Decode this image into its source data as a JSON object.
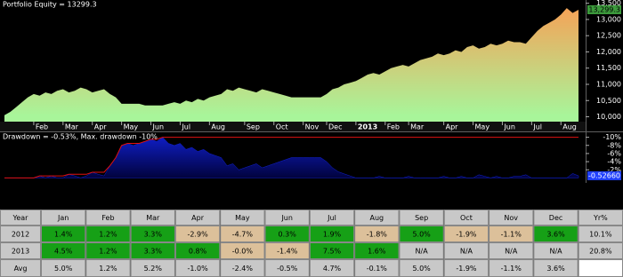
{
  "chart_data": [
    {
      "type": "area",
      "title": "Portfolio Equity = 13299.3",
      "values": [
        10050,
        10150,
        10300,
        10450,
        10600,
        10700,
        10650,
        10750,
        10700,
        10800,
        10850,
        10750,
        10800,
        10900,
        10850,
        10750,
        10800,
        10850,
        10700,
        10600,
        10400,
        10400,
        10400,
        10400,
        10350,
        10350,
        10350,
        10350,
        10400,
        10450,
        10400,
        10500,
        10450,
        10550,
        10500,
        10600,
        10650,
        10700,
        10850,
        10800,
        10900,
        10850,
        10800,
        10750,
        10850,
        10800,
        10750,
        10700,
        10650,
        10600,
        10600,
        10600,
        10600,
        10600,
        10600,
        10700,
        10850,
        10900,
        11000,
        11050,
        11100,
        11200,
        11300,
        11350,
        11300,
        11400,
        11500,
        11550,
        11600,
        11550,
        11650,
        11750,
        11800,
        11850,
        11950,
        11900,
        11950,
        12050,
        12000,
        12150,
        12200,
        12100,
        12150,
        12250,
        12200,
        12250,
        12350,
        12300,
        12300,
        12250,
        12450,
        12650,
        12800,
        12900,
        13000,
        13150,
        13350,
        13200,
        13299.3
      ],
      "xlim": [
        0,
        98
      ],
      "xticks": [
        {
          "value": 5,
          "label": "Feb"
        },
        {
          "value": 10,
          "label": "Mar"
        },
        {
          "value": 15,
          "label": "Apr"
        },
        {
          "value": 20,
          "label": "May"
        },
        {
          "value": 25,
          "label": "Jun"
        },
        {
          "value": 30,
          "label": "Jul"
        },
        {
          "value": 35,
          "label": "Aug"
        },
        {
          "value": 41,
          "label": "Sep"
        },
        {
          "value": 46,
          "label": "Oct"
        },
        {
          "value": 51,
          "label": "Nov"
        },
        {
          "value": 55,
          "label": "Dec"
        },
        {
          "value": 60,
          "label": "2013"
        },
        {
          "value": 65,
          "label": "Feb"
        },
        {
          "value": 69,
          "label": "Mar"
        },
        {
          "value": 75,
          "label": "Apr"
        },
        {
          "value": 80,
          "label": "May"
        },
        {
          "value": 85,
          "label": "Jun"
        },
        {
          "value": 90,
          "label": "Jul"
        },
        {
          "value": 95,
          "label": "Aug"
        }
      ],
      "ylim": [
        9850,
        13600
      ],
      "yticks": [
        {
          "value": 10000,
          "label": "10,000"
        },
        {
          "value": 10500,
          "label": "10,500"
        },
        {
          "value": 11000,
          "label": "11,000"
        },
        {
          "value": 11500,
          "label": "11,500"
        },
        {
          "value": 12000,
          "label": "12,000"
        },
        {
          "value": 12500,
          "label": "12,500"
        },
        {
          "value": 13000,
          "label": "13,000"
        },
        {
          "value": 13500,
          "label": "13,500"
        }
      ],
      "last_label": "13,299.3",
      "color_top": "#f2a65a",
      "color_bottom": "#a8f59a",
      "label_color": "#3c9a3c"
    },
    {
      "type": "drawdown",
      "title": "Drawdown = -0.53%, Max. drawdown -10%",
      "series": [
        {
          "color": "#1020d0",
          "values": [
            0,
            0,
            0,
            0,
            0,
            0,
            -0.5,
            0,
            -0.5,
            0,
            0,
            -0.9,
            -0.5,
            0,
            -0.5,
            -1.4,
            -0.9,
            -0.5,
            -3,
            -5,
            -8,
            -8.5,
            -8,
            -8.5,
            -9,
            -9.5,
            -9,
            -10,
            -8.5,
            -8,
            -8.5,
            -7,
            -7.5,
            -6.5,
            -7,
            -6,
            -5.5,
            -5,
            -3,
            -3.5,
            -2,
            -2.5,
            -3,
            -3.5,
            -2.5,
            -3,
            -3.5,
            -4,
            -4.5,
            -5,
            -5,
            -5,
            -5,
            -5,
            -5,
            -4,
            -2.5,
            -1.5,
            -1,
            -0.5,
            0,
            0,
            0,
            0,
            -0.4,
            0,
            0,
            0,
            0,
            -0.4,
            0,
            0,
            0,
            0,
            0,
            -0.4,
            0,
            0,
            -0.4,
            0,
            0,
            -0.8,
            -0.4,
            0,
            -0.4,
            0,
            0,
            -0.4,
            -0.4,
            -0.8,
            0,
            0,
            0,
            0,
            0,
            0,
            0,
            -1.1,
            -0.5266
          ]
        },
        {
          "color": "#e01010",
          "values": [
            0,
            0,
            0,
            0,
            0,
            0,
            -0.5,
            -0.5,
            -0.5,
            -0.5,
            -0.5,
            -0.9,
            -0.9,
            -0.9,
            -0.9,
            -1.4,
            -1.4,
            -1.4,
            -3,
            -5,
            -8,
            -8.5,
            -8.5,
            -8.5,
            -9,
            -9.5,
            -9.5,
            -10,
            -10,
            -10,
            -10,
            -10,
            -10,
            -10,
            -10,
            -10,
            -10,
            -10,
            -10,
            -10,
            -10,
            -10,
            -10,
            -10,
            -10,
            -10,
            -10,
            -10,
            -10,
            -10,
            -10,
            -10,
            -10,
            -10,
            -10,
            -10,
            -10,
            -10,
            -10,
            -10,
            -10,
            -10,
            -10,
            -10,
            -10,
            -10,
            -10,
            -10,
            -10,
            -10,
            -10,
            -10,
            -10,
            -10,
            -10,
            -10,
            -10,
            -10,
            -10,
            -10,
            -10,
            -10,
            -10,
            -10,
            -10,
            -10,
            -10,
            -10,
            -10,
            -10,
            -10,
            -10,
            -10,
            -10,
            -10,
            -10,
            -10,
            -10,
            -10
          ]
        }
      ],
      "xlim": [
        0,
        98
      ],
      "ylim": [
        1,
        -11
      ],
      "yticks": [
        {
          "value": -2,
          "label": "-2%"
        },
        {
          "value": -4,
          "label": "-4%"
        },
        {
          "value": -6,
          "label": "-6%"
        },
        {
          "value": -8,
          "label": "-8%"
        },
        {
          "value": -10,
          "label": "-10%"
        }
      ],
      "last_label": "-0.52660",
      "label_color": "#2040ff"
    }
  ],
  "table": {
    "header": [
      "Year",
      "Jan",
      "Feb",
      "Mar",
      "Apr",
      "May",
      "Jun",
      "Jul",
      "Aug",
      "Sep",
      "Oct",
      "Nov",
      "Dec",
      "Yr%"
    ],
    "rows": [
      [
        "2012",
        "1.4%",
        "1.2%",
        "3.3%",
        "-2.9%",
        "-4.7%",
        "0.3%",
        "1.9%",
        "-1.8%",
        "5.0%",
        "-1.9%",
        "-1.1%",
        "3.6%",
        "10.1%"
      ],
      [
        "2013",
        "4.5%",
        "1.2%",
        "3.3%",
        "0.8%",
        "-0.0%",
        "-1.4%",
        "7.5%",
        "1.6%",
        "N/A",
        "N/A",
        "N/A",
        "N/A",
        "20.8%"
      ],
      [
        "Avg",
        "5.0%",
        "1.2%",
        "5.2%",
        "-1.0%",
        "-2.4%",
        "-0.5%",
        "4.7%",
        "-0.1%",
        "5.0%",
        "-1.9%",
        "-1.1%",
        "3.6%"
      ]
    ]
  }
}
